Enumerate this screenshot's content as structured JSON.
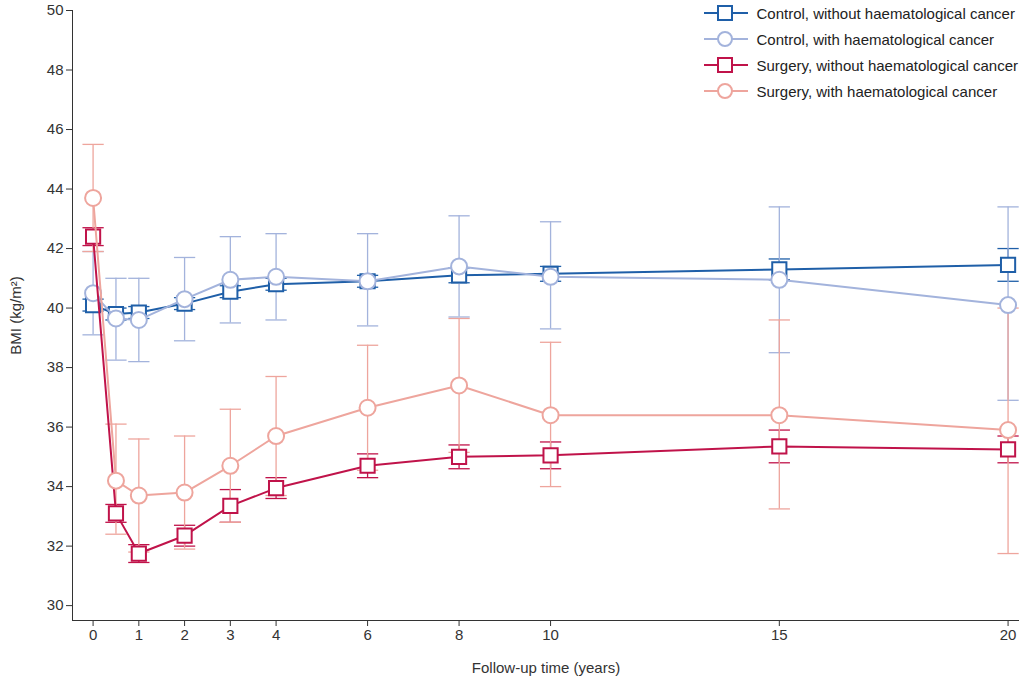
{
  "chart_data": {
    "type": "line",
    "xlabel": "Follow-up time (years)",
    "ylabel": "BMI (kg/m²)",
    "x": [
      0,
      0.5,
      1,
      2,
      3,
      4,
      6,
      8,
      10,
      15,
      20
    ],
    "xlim": [
      -0.45,
      20.25
    ],
    "xticks": [
      0,
      1,
      2,
      3,
      4,
      6,
      8,
      10,
      15,
      20
    ],
    "ylim": [
      29.5,
      50
    ],
    "yticks": [
      30,
      32,
      34,
      36,
      38,
      40,
      42,
      44,
      46,
      48,
      50
    ],
    "grid": false,
    "legend": "top-right",
    "series": [
      {
        "name": "Control, without haematological cancer",
        "color": "#1f5fa8",
        "marker": "square",
        "values": [
          40.1,
          39.8,
          39.85,
          40.15,
          40.55,
          40.8,
          40.9,
          41.1,
          41.15,
          41.3,
          41.45
        ],
        "lower": [
          39.9,
          39.6,
          39.65,
          39.95,
          40.35,
          40.6,
          40.7,
          40.85,
          40.9,
          40.95,
          40.9
        ],
        "upper": [
          40.3,
          40.0,
          40.05,
          40.35,
          40.75,
          41.0,
          41.1,
          41.35,
          41.4,
          41.65,
          42.0
        ]
      },
      {
        "name": "Control, with haematological cancer",
        "color": "#a3b3dc",
        "marker": "circle",
        "values": [
          40.5,
          39.65,
          39.6,
          40.3,
          40.95,
          41.05,
          40.9,
          41.4,
          41.05,
          40.95,
          40.1
        ],
        "lower": [
          39.1,
          38.25,
          38.2,
          38.9,
          39.5,
          39.6,
          39.4,
          39.7,
          39.3,
          38.5,
          36.9
        ],
        "upper": [
          41.9,
          41.0,
          41.0,
          41.7,
          42.4,
          42.5,
          42.5,
          43.1,
          42.9,
          43.4,
          43.4
        ]
      },
      {
        "name": "Surgery, without haematological cancer",
        "color": "#c0134a",
        "marker": "square",
        "values": [
          42.4,
          33.1,
          31.75,
          32.35,
          33.35,
          33.95,
          34.7,
          35.0,
          35.05,
          35.35,
          35.25
        ],
        "lower": [
          42.1,
          32.8,
          31.45,
          32.0,
          32.8,
          33.6,
          34.3,
          34.6,
          34.6,
          34.8,
          34.8
        ],
        "upper": [
          42.7,
          33.4,
          32.05,
          32.7,
          33.9,
          34.3,
          35.1,
          35.4,
          35.5,
          35.9,
          35.7
        ]
      },
      {
        "name": "Surgery, with haematological cancer",
        "color": "#eea59d",
        "marker": "circle",
        "values": [
          43.7,
          34.2,
          33.7,
          33.8,
          34.7,
          35.7,
          36.65,
          37.4,
          36.4,
          36.4,
          35.9
        ],
        "lower": [
          41.9,
          32.4,
          31.8,
          31.9,
          32.8,
          33.7,
          34.55,
          35.15,
          34.0,
          33.25,
          31.75
        ],
        "upper": [
          45.5,
          36.1,
          35.6,
          35.7,
          36.6,
          37.7,
          38.75,
          39.65,
          38.85,
          39.6,
          40.0
        ]
      }
    ]
  }
}
